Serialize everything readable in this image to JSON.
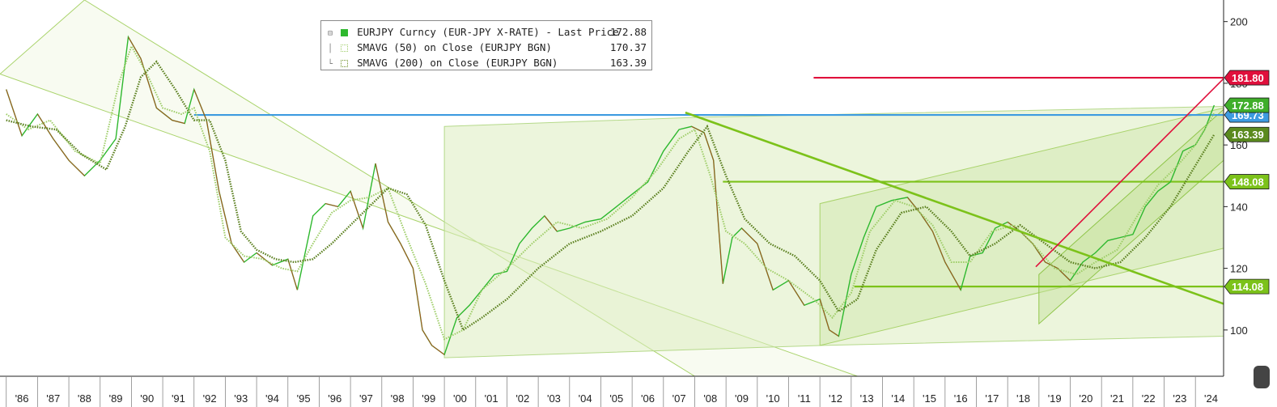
{
  "legend": {
    "items": [
      {
        "label": "EURJPY Curncy (EUR-JPY X-RATE) - Last Price",
        "value": "172.88",
        "color": "#2eb82e"
      },
      {
        "label": "SMAVG (50)  on Close (EURJPY BGN)",
        "value": "170.37",
        "color": "#b8dd88"
      },
      {
        "label": "SMAVG (200)  on Close (EURJPY BGN)",
        "value": "163.39",
        "color": "#6b8e23"
      }
    ]
  },
  "chart_data": {
    "type": "line",
    "title": "",
    "xlabel": "",
    "ylabel": "",
    "xlim": [
      1985.8,
      2024.9
    ],
    "ylim": [
      85,
      207
    ],
    "y_ticks": [
      100,
      120,
      140,
      160,
      180,
      200
    ],
    "x_ticks": [
      "'86",
      "'87",
      "'88",
      "'89",
      "'90",
      "'91",
      "'92",
      "'93",
      "'94",
      "'95",
      "'96",
      "'97",
      "'98",
      "'99",
      "'00",
      "'01",
      "'02",
      "'03",
      "'04",
      "'05",
      "'06",
      "'07",
      "'08",
      "'09",
      "'10",
      "'11",
      "'12",
      "'13",
      "'14",
      "'15",
      "'16",
      "'17",
      "'18",
      "'19",
      "'20",
      "'21",
      "'22",
      "'23",
      "'24"
    ],
    "grid": false,
    "legend_position": "top-left",
    "series": [
      {
        "name": "EURJPY Curncy (EUR-JPY X-RATE) - Last Price",
        "x": [
          1986.0,
          1986.5,
          1987.0,
          1987.5,
          1988.0,
          1988.5,
          1989.0,
          1989.5,
          1989.9,
          1990.3,
          1990.8,
          1991.3,
          1991.7,
          1992.0,
          1992.4,
          1992.8,
          1993.2,
          1993.6,
          1994.0,
          1994.5,
          1995.0,
          1995.3,
          1995.8,
          1996.2,
          1996.6,
          1997.0,
          1997.4,
          1997.8,
          1998.2,
          1998.6,
          1999.0,
          1999.3,
          1999.6,
          2000.0,
          2000.4,
          2000.8,
          2001.2,
          2001.6,
          2002.0,
          2002.4,
          2002.8,
          2003.2,
          2003.6,
          2004.0,
          2004.5,
          2005.0,
          2005.5,
          2006.0,
          2006.5,
          2007.0,
          2007.5,
          2007.9,
          2008.3,
          2008.6,
          2008.9,
          2009.2,
          2009.5,
          2010.0,
          2010.5,
          2011.0,
          2011.5,
          2012.0,
          2012.3,
          2012.6,
          2013.0,
          2013.4,
          2013.8,
          2014.3,
          2014.8,
          2015.2,
          2015.6,
          2016.0,
          2016.5,
          2016.8,
          2017.2,
          2017.6,
          2018.0,
          2018.4,
          2018.8,
          2019.2,
          2019.6,
          2020.0,
          2020.4,
          2020.8,
          2021.2,
          2021.6,
          2022.0,
          2022.4,
          2022.8,
          2023.2,
          2023.6,
          2024.0,
          2024.3,
          2024.6
        ],
        "values": [
          178,
          163,
          170,
          162,
          155,
          150,
          155,
          162,
          195,
          188,
          172,
          168,
          167,
          178,
          168,
          145,
          128,
          122,
          125,
          121,
          123,
          113,
          137,
          141,
          140,
          145,
          133,
          154,
          135,
          128,
          120,
          100,
          95,
          92,
          104,
          108,
          113,
          118,
          119,
          128,
          133,
          137,
          132,
          133,
          135,
          136,
          140,
          144,
          148,
          158,
          165,
          166,
          164,
          155,
          115,
          130,
          133,
          128,
          113,
          116,
          108,
          110,
          100,
          98,
          118,
          130,
          140,
          142,
          143,
          138,
          132,
          122,
          113,
          124,
          125,
          133,
          135,
          132,
          128,
          122,
          120,
          116,
          122,
          125,
          129,
          130,
          131,
          140,
          145,
          148,
          158,
          160,
          165,
          172.88
        ]
      },
      {
        "name": "SMAVG (50)  on Close (EURJPY BGN)",
        "x": [
          1986.0,
          1986.7,
          1987.4,
          1988.2,
          1989.0,
          1989.6,
          1990.0,
          1990.5,
          1991.0,
          1991.6,
          1992.0,
          1992.5,
          1993.0,
          1993.6,
          1994.2,
          1994.8,
          1995.3,
          1995.8,
          1996.4,
          1997.0,
          1997.6,
          1998.2,
          1998.8,
          1999.4,
          2000.0,
          2000.6,
          2001.2,
          2002.0,
          2002.8,
          2003.6,
          2004.4,
          2005.2,
          2006.0,
          2006.8,
          2007.5,
          2008.0,
          2008.5,
          2009.0,
          2009.6,
          2010.3,
          2011.0,
          2011.8,
          2012.4,
          2013.0,
          2013.6,
          2014.4,
          2015.0,
          2015.6,
          2016.2,
          2016.8,
          2017.5,
          2018.2,
          2018.8,
          2019.5,
          2020.2,
          2020.8,
          2021.5,
          2022.2,
          2022.8,
          2023.4,
          2024.0,
          2024.6
        ],
        "values": [
          170,
          165,
          168,
          158,
          154,
          180,
          192,
          183,
          172,
          170,
          172,
          158,
          130,
          124,
          123,
          120,
          119,
          128,
          138,
          142,
          143,
          146,
          130,
          115,
          97,
          100,
          113,
          120,
          128,
          135,
          133,
          136,
          143,
          152,
          162,
          165,
          150,
          132,
          128,
          120,
          116,
          110,
          104,
          112,
          132,
          142,
          140,
          134,
          122,
          122,
          132,
          134,
          128,
          120,
          118,
          122,
          126,
          138,
          147,
          153,
          160,
          170.37
        ]
      },
      {
        "name": "SMAVG (200)  on Close (EURJPY BGN)",
        "x": [
          1986.0,
          1986.8,
          1987.6,
          1988.4,
          1989.2,
          1989.8,
          1990.3,
          1990.8,
          1991.4,
          1992.0,
          1992.5,
          1993.0,
          1993.5,
          1994.0,
          1994.6,
          1995.2,
          1995.8,
          1996.4,
          1997.0,
          1997.6,
          1998.2,
          1998.8,
          1999.4,
          2000.0,
          2000.6,
          2001.2,
          2002.0,
          2003.0,
          2004.0,
          2005.0,
          2006.0,
          2007.0,
          2007.8,
          2008.4,
          2009.0,
          2009.6,
          2010.4,
          2011.2,
          2012.0,
          2012.6,
          2013.2,
          2013.8,
          2014.6,
          2015.4,
          2016.2,
          2016.8,
          2017.6,
          2018.4,
          2019.2,
          2020.0,
          2020.8,
          2021.6,
          2022.4,
          2023.2,
          2023.8,
          2024.6
        ],
        "values": [
          168,
          166,
          165,
          157,
          152,
          166,
          182,
          187,
          178,
          168,
          168,
          155,
          132,
          126,
          123,
          122,
          123,
          128,
          134,
          140,
          146,
          144,
          134,
          116,
          100,
          104,
          110,
          120,
          128,
          132,
          137,
          146,
          158,
          166,
          150,
          136,
          128,
          124,
          116,
          106,
          110,
          126,
          138,
          140,
          132,
          124,
          128,
          134,
          128,
          122,
          120,
          122,
          130,
          140,
          150,
          163.39
        ]
      }
    ],
    "horizontal_levels": [
      {
        "value": 181.8,
        "label": "181.80",
        "color": "#e0103c",
        "x_start": 2011.8
      },
      {
        "value": 169.73,
        "label": "169.73",
        "color": "#3d9be0",
        "x_start": 1992.0
      },
      {
        "value": 148.08,
        "label": "148.08",
        "color": "#7cc21a",
        "x_start": 2008.9
      },
      {
        "value": 114.08,
        "label": "114.08",
        "color": "#7cc21a",
        "x_start": 2013.1
      }
    ],
    "price_tags": [
      {
        "value": 172.88,
        "label": "172.88",
        "color": "#3fae2a"
      },
      {
        "value": 163.39,
        "label": "163.39",
        "color": "#5a8a1e"
      }
    ],
    "trend_lines": [
      {
        "x": [
          2007.7,
          2024.9
        ],
        "y": [
          170.5,
          108.5
        ],
        "color": "#7cc21a"
      },
      {
        "x": [
          2018.9,
          2024.9
        ],
        "y": [
          120.5,
          181.5
        ],
        "color": "#e0103c"
      }
    ]
  }
}
